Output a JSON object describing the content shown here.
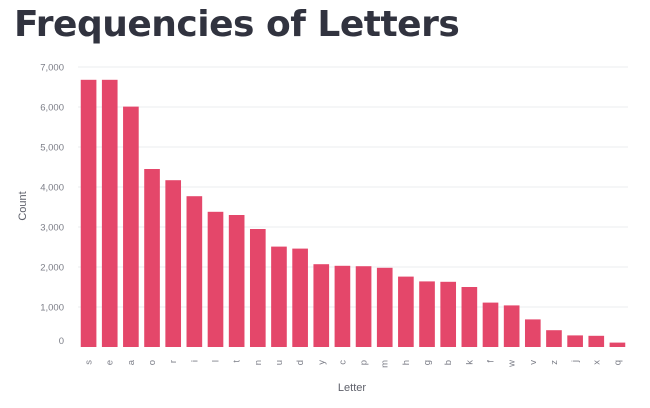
{
  "chart_data": {
    "type": "bar",
    "title": "Frequencies of Letters",
    "xlabel": "Letter",
    "ylabel": "Count",
    "ylim": [
      0,
      7000
    ],
    "yticks": [
      0,
      1000,
      2000,
      3000,
      4000,
      5000,
      6000,
      7000
    ],
    "ytick_labels": [
      "0",
      "1,000",
      "2,000",
      "3,000",
      "4,000",
      "5,000",
      "6,000",
      "7,000"
    ],
    "grid": true,
    "legend": "none",
    "bar_color": "#e4476a",
    "grid_color": "#ebecef",
    "categories": [
      "s",
      "e",
      "a",
      "o",
      "r",
      "i",
      "l",
      "t",
      "n",
      "u",
      "d",
      "y",
      "c",
      "p",
      "m",
      "h",
      "g",
      "b",
      "k",
      "f",
      "w",
      "v",
      "z",
      "j",
      "x",
      "q"
    ],
    "values": [
      6680,
      6680,
      6010,
      4450,
      4170,
      3770,
      3380,
      3300,
      2950,
      2510,
      2460,
      2070,
      2030,
      2020,
      1980,
      1760,
      1640,
      1630,
      1500,
      1110,
      1040,
      690,
      420,
      290,
      280,
      110
    ]
  }
}
